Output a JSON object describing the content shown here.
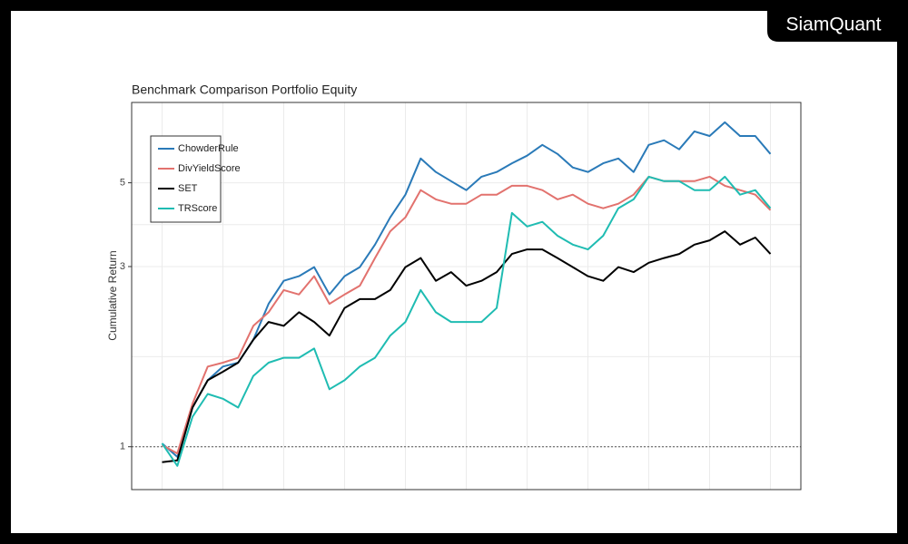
{
  "logo": "SiamQuant",
  "chart_data": {
    "type": "line",
    "title": "Benchmark Comparison Portfolio Equity",
    "ylabel": "Cumulative Return",
    "log_y": true,
    "ylim": [
      0.77,
      8.16
    ],
    "yticks": [
      1,
      3,
      5
    ],
    "xlim": [
      -2,
      42
    ],
    "xticks": [
      0,
      4,
      8,
      12,
      16,
      20,
      24,
      28,
      32,
      36,
      40
    ],
    "grid": true,
    "hline": 1,
    "legend": "upper left",
    "series": [
      {
        "name": "ChowderRule",
        "color": "#2a7ab8",
        "values": [
          1.02,
          0.94,
          1.27,
          1.5,
          1.63,
          1.67,
          1.92,
          2.39,
          2.75,
          2.83,
          2.99,
          2.53,
          2.83,
          2.99,
          3.43,
          4.05,
          4.65,
          5.8,
          5.34,
          5.05,
          4.78,
          5.19,
          5.34,
          5.63,
          5.9,
          6.3,
          5.96,
          5.49,
          5.34,
          5.63,
          5.8,
          5.34,
          6.3,
          6.48,
          6.13,
          6.84,
          6.65,
          7.23,
          6.65,
          6.65,
          5.96
        ]
      },
      {
        "name": "DivYieldScore",
        "color": "#e2726e",
        "values": [
          1.01,
          0.96,
          1.3,
          1.63,
          1.67,
          1.72,
          2.09,
          2.27,
          2.6,
          2.53,
          2.83,
          2.39,
          2.53,
          2.67,
          3.16,
          3.72,
          4.05,
          4.78,
          4.52,
          4.4,
          4.4,
          4.65,
          4.65,
          4.91,
          4.91,
          4.78,
          4.52,
          4.65,
          4.4,
          4.28,
          4.4,
          4.65,
          5.19,
          5.05,
          5.05,
          5.05,
          5.19,
          4.91,
          4.78,
          4.65,
          4.23
        ]
      },
      {
        "name": "SET",
        "color": "#000000",
        "values": [
          0.91,
          0.92,
          1.27,
          1.5,
          1.58,
          1.67,
          1.92,
          2.14,
          2.09,
          2.27,
          2.14,
          1.97,
          2.33,
          2.46,
          2.46,
          2.6,
          2.99,
          3.16,
          2.75,
          2.9,
          2.67,
          2.75,
          2.9,
          3.24,
          3.33,
          3.33,
          3.16,
          2.99,
          2.83,
          2.75,
          2.99,
          2.9,
          3.07,
          3.16,
          3.24,
          3.43,
          3.52,
          3.72,
          3.43,
          3.58,
          3.24
        ]
      },
      {
        "name": "TRScore",
        "color": "#1fbcb2",
        "values": [
          1.02,
          0.89,
          1.2,
          1.38,
          1.34,
          1.27,
          1.54,
          1.67,
          1.72,
          1.72,
          1.82,
          1.42,
          1.5,
          1.63,
          1.72,
          1.97,
          2.14,
          2.6,
          2.27,
          2.14,
          2.14,
          2.14,
          2.33,
          4.16,
          3.83,
          3.94,
          3.62,
          3.43,
          3.33,
          3.62,
          4.28,
          4.52,
          5.19,
          5.05,
          5.05,
          4.78,
          4.78,
          5.19,
          4.65,
          4.78,
          4.28
        ]
      }
    ]
  }
}
